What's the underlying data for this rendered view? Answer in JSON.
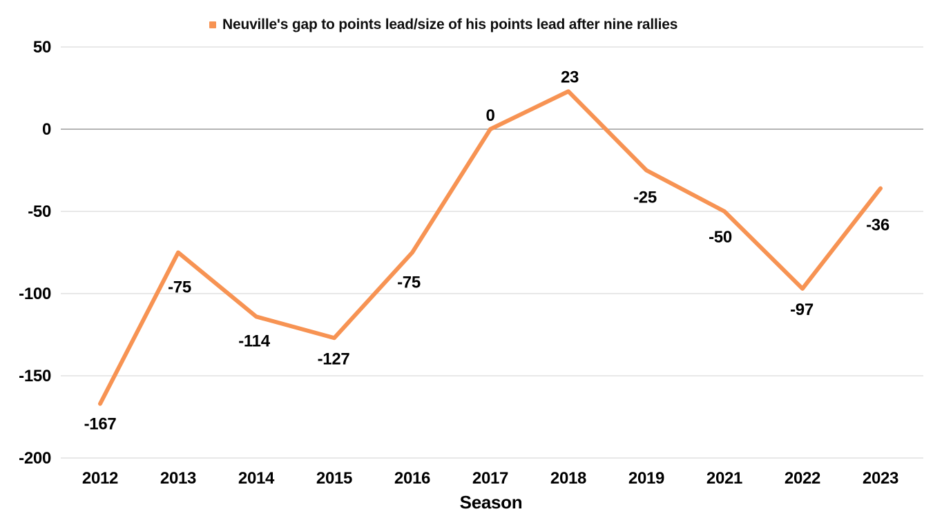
{
  "chart_data": {
    "type": "line",
    "title": "",
    "legend": "Neuville's gap to points lead/size of his points lead after nine rallies",
    "legend_position": "top",
    "categories": [
      "2012",
      "2013",
      "2014",
      "2015",
      "2016",
      "2017",
      "2018",
      "2019",
      "2021",
      "2022",
      "2023"
    ],
    "series": [
      {
        "name": "Neuville's gap to points lead/size of his points lead after nine rallies",
        "values": [
          -167,
          -75,
          -114,
          -127,
          -75,
          0,
          23,
          -25,
          -50,
          -97,
          -36
        ],
        "labels": [
          "-167",
          "-75",
          "-114",
          "-127",
          "-75",
          "0",
          "23",
          "-25",
          "-50",
          "-97",
          "-36"
        ]
      }
    ],
    "xlabel": "Season",
    "ylabel": "",
    "ylim": [
      -200,
      50
    ],
    "yticks": [
      50,
      0,
      -50,
      -100,
      -150,
      -200
    ],
    "grid": "horizontal",
    "colors": {
      "line": "#F79353",
      "gridline": "#D9D9D9",
      "zeroline": "#9B9B9B",
      "text": "#000000",
      "background": "#FFFFFF"
    }
  }
}
